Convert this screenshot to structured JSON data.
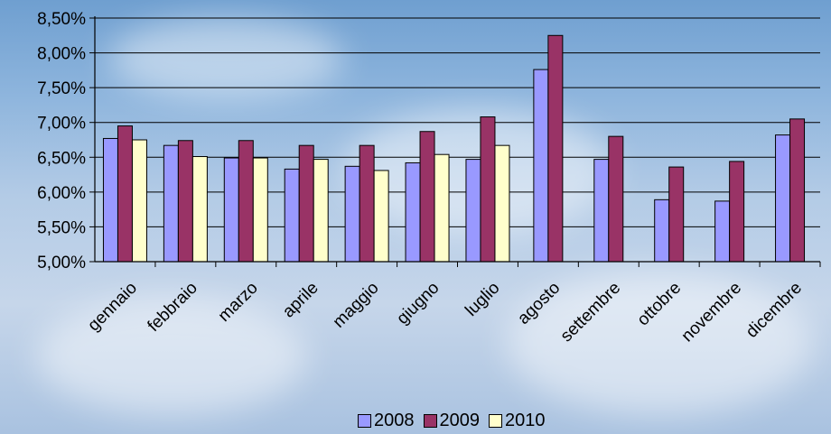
{
  "chart_data": {
    "type": "bar",
    "categories": [
      "gennaio",
      "febbraio",
      "marzo",
      "aprile",
      "maggio",
      "giugno",
      "luglio",
      "agosto",
      "settembre",
      "ottobre",
      "novembre",
      "dicembre"
    ],
    "series": [
      {
        "name": "2008",
        "color": "#9999ff",
        "values": [
          6.77,
          6.67,
          6.49,
          6.33,
          6.37,
          6.42,
          6.47,
          7.76,
          6.47,
          5.89,
          5.87,
          6.82
        ]
      },
      {
        "name": "2009",
        "color": "#993366",
        "values": [
          6.95,
          6.74,
          6.74,
          6.67,
          6.67,
          6.87,
          7.08,
          8.25,
          6.8,
          6.36,
          6.44,
          7.05
        ]
      },
      {
        "name": "2010",
        "color": "#ffffcc",
        "values": [
          6.75,
          6.51,
          6.49,
          6.47,
          6.31,
          6.54,
          6.67,
          null,
          null,
          null,
          null,
          null
        ]
      }
    ],
    "y_ticks": [
      "5,00%",
      "5,50%",
      "6,00%",
      "6,50%",
      "7,00%",
      "7,50%",
      "8,00%",
      "8,50%"
    ],
    "ylim": [
      5.0,
      8.5
    ],
    "grid": true,
    "legend_position": "bottom",
    "title": "",
    "xlabel": "",
    "ylabel": ""
  }
}
